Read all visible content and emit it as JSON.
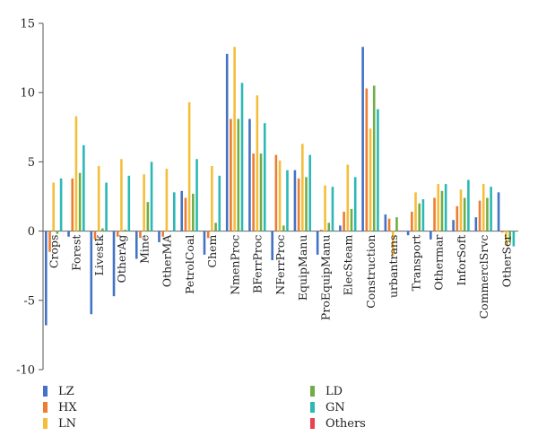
{
  "chart_data": {
    "type": "bar",
    "title": "",
    "xlabel": "",
    "ylabel": "",
    "ylim": [
      -10,
      15
    ],
    "yticks": [
      -10,
      -5,
      0,
      5,
      10,
      15
    ],
    "grid": false,
    "legend_position": "bottom",
    "categories": [
      "Crops",
      "Forest",
      "Livestk",
      "OtherAg",
      "Mine",
      "OtherMA",
      "PetrolCoal",
      "Chem",
      "NmenProc",
      "BFerrProc",
      "NFerrProc",
      "EquipManu",
      "ProEquipManu",
      "ElecSteam",
      "Construction",
      "urbantrans",
      "Transport",
      "Othermar",
      "InforSoft",
      "CommerclSrvc",
      "OtherSer"
    ],
    "series": [
      {
        "name": "LZ",
        "color": "#4472C4",
        "values": [
          -6.8,
          -0.4,
          -6.0,
          -4.7,
          -2.0,
          -0.8,
          2.9,
          -1.7,
          12.8,
          8.1,
          -2.1,
          4.4,
          -1.7,
          0.4,
          13.3,
          1.2,
          -0.3,
          -0.6,
          0.8,
          1.0,
          2.8
        ]
      },
      {
        "name": "HX",
        "color": "#ED7D31",
        "values": [
          -1.5,
          3.8,
          -0.6,
          -0.4,
          -0.5,
          -0.4,
          2.4,
          -0.5,
          8.1,
          5.6,
          5.5,
          3.8,
          0.1,
          1.4,
          10.3,
          0.9,
          1.4,
          2.4,
          1.8,
          2.2,
          -0.1
        ]
      },
      {
        "name": "LN",
        "color": "#F5BE3A",
        "values": [
          3.5,
          8.3,
          4.7,
          5.2,
          4.1,
          4.5,
          9.3,
          4.7,
          13.3,
          9.8,
          5.1,
          6.3,
          3.3,
          4.8,
          7.4,
          -1.8,
          2.8,
          3.4,
          3.0,
          3.4,
          -1.0
        ]
      },
      {
        "name": "LD",
        "color": "#70AD47",
        "values": [
          -0.2,
          4.2,
          0.2,
          0.1,
          2.1,
          0.0,
          2.7,
          0.6,
          8.1,
          5.6,
          0.4,
          3.9,
          0.6,
          1.6,
          10.5,
          1.0,
          2.0,
          2.9,
          2.4,
          2.4,
          -0.8
        ]
      },
      {
        "name": "GN",
        "color": "#2CB8B4",
        "values": [
          3.8,
          6.2,
          3.5,
          4.0,
          5.0,
          2.8,
          5.2,
          4.0,
          10.7,
          7.8,
          4.4,
          5.5,
          3.2,
          3.9,
          8.8,
          0.0,
          2.3,
          3.4,
          3.7,
          3.2,
          -1.1
        ]
      },
      {
        "name": "Others",
        "color": "#E8414F",
        "values": [
          0,
          0,
          0,
          0,
          0,
          0,
          0,
          0,
          0,
          0,
          0,
          0,
          0,
          0,
          0,
          0,
          0,
          0,
          0,
          0,
          0
        ]
      }
    ]
  }
}
